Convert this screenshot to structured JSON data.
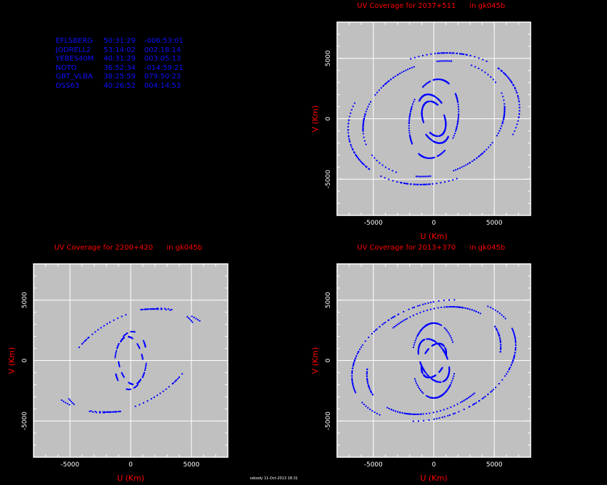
{
  "stations": [
    {
      "name": "EFLSBERG",
      "lon": "50:31:29",
      "lat": "-006:53:01"
    },
    {
      "name": "JODRELL2",
      "lon": "53:14:02",
      "lat": "002:18:14"
    },
    {
      "name": "YEBES40M",
      "lon": "40:31:29",
      "lat": "003:05:13"
    },
    {
      "name": "NOTO",
      "lon": "36:52:34",
      "lat": "-014:59:21"
    },
    {
      "name": "GBT_VLBA",
      "lon": "38:25:59",
      "lat": "079:50:23"
    },
    {
      "name": "DSS63",
      "lon": "40:26:52",
      "lat": "004:14:53"
    }
  ],
  "footer": "sdoody  11-Oct-2013  18:31",
  "colors": {
    "background": "#000000",
    "plot_bg": "#c0c0c0",
    "grid": "#ffffff",
    "points": "#0000ff",
    "text_red": "#ff0000",
    "table_blue": "#1010ff"
  },
  "chart_data": [
    {
      "type": "scatter",
      "title": "UV Coverage for 2037+511      in gk045b",
      "xlabel": "U (Km)",
      "ylabel": "V (Km)",
      "xlim": [
        -8000,
        8000
      ],
      "ylim": [
        -8000,
        8000
      ],
      "xticks": [
        -5000,
        0,
        5000
      ],
      "yticks": [
        -5000,
        0,
        5000
      ],
      "xtick_labels": [
        "-5000",
        "0",
        "5000"
      ],
      "ytick_labels": [
        "-5000",
        "0",
        "5000"
      ],
      "grid": true,
      "pattern": "rings",
      "baselines": [
        {
          "a": 1200,
          "b": 2100,
          "tilt": 20
        },
        {
          "a": 900,
          "b": 1500,
          "tilt": 20
        },
        {
          "a": 2000,
          "b": 3300,
          "tilt": -10
        },
        {
          "a": 6000,
          "b": 4600,
          "tilt": 20
        },
        {
          "a": 7200,
          "b": 5300,
          "tilt": 15
        }
      ]
    },
    {
      "type": "scatter",
      "title": "UV Coverage for 2200+420      in gk045b",
      "xlabel": "U (Km)",
      "ylabel": "V (Km)",
      "xlim": [
        -8000,
        8000
      ],
      "ylim": [
        -8000,
        8000
      ],
      "xticks": [
        -5000,
        0,
        5000
      ],
      "yticks": [
        -5000,
        0,
        5000
      ],
      "xtick_labels": [
        "-5000",
        "0",
        "5000"
      ],
      "ytick_labels": [
        "-5000",
        "0",
        "5000"
      ],
      "grid": true,
      "pattern": "sparse",
      "baselines": [
        {
          "a": 1000,
          "b": 2000,
          "tilt": 10
        },
        {
          "a": 1300,
          "b": 2400,
          "tilt": -5
        },
        {
          "a": 6000,
          "b": 3600,
          "tilt": 30
        },
        {
          "a": 7000,
          "b": 4000,
          "tilt": 15
        }
      ]
    },
    {
      "type": "scatter",
      "title": "UV Coverage for 2013+370      in gk045b",
      "xlabel": "U (Km)",
      "ylabel": "V (Km)",
      "xlim": [
        -8000,
        8000
      ],
      "ylim": [
        -8000,
        8000
      ],
      "xticks": [
        -5000,
        0,
        5000
      ],
      "yticks": [
        -5000,
        0,
        5000
      ],
      "xtick_labels": [
        "-5000",
        "0",
        "5000"
      ],
      "ytick_labels": [
        "-5000",
        "0",
        "5000"
      ],
      "grid": true,
      "pattern": "rings",
      "baselines": [
        {
          "a": 1100,
          "b": 1900,
          "tilt": 25
        },
        {
          "a": 900,
          "b": 1500,
          "tilt": -25
        },
        {
          "a": 1800,
          "b": 3100,
          "tilt": 0
        },
        {
          "a": 5800,
          "b": 4100,
          "tilt": 25
        },
        {
          "a": 7000,
          "b": 4700,
          "tilt": 20
        }
      ]
    }
  ]
}
